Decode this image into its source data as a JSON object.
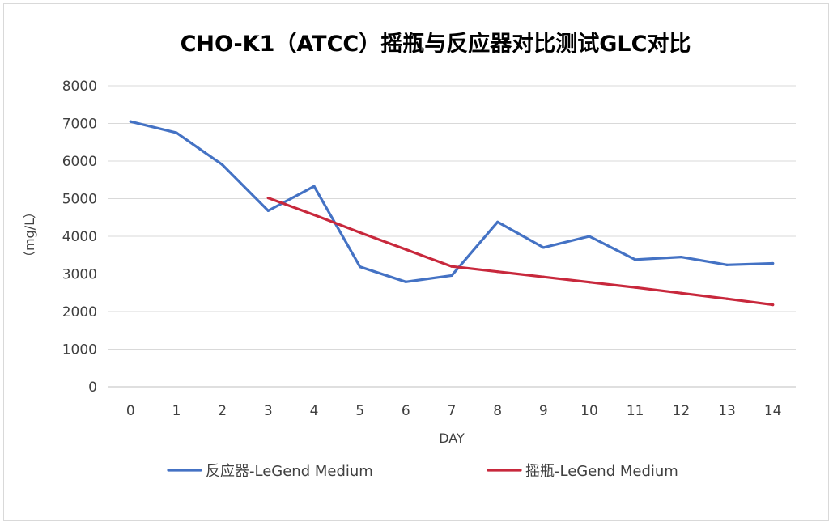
{
  "chart_data": {
    "type": "line",
    "title": "CHO-K1（ATCC）摇瓶与反应器对比测试GLC对比",
    "xlabel": "DAY",
    "ylabel": "（mg/L）",
    "categories": [
      "0",
      "1",
      "2",
      "3",
      "4",
      "5",
      "6",
      "7",
      "8",
      "9",
      "10",
      "11",
      "12",
      "13",
      "14"
    ],
    "ylim": [
      0,
      8000
    ],
    "yticks": [
      0,
      1000,
      2000,
      3000,
      4000,
      5000,
      6000,
      7000,
      8000
    ],
    "grid": true,
    "legend_position": "bottom",
    "series": [
      {
        "name": "反应器-LeGend Medium",
        "color": "#4472c4",
        "x": [
          0,
          1,
          2,
          3,
          4,
          5,
          6,
          7,
          8,
          9,
          10,
          11,
          12,
          13,
          14
        ],
        "values": [
          7050,
          6750,
          5900,
          4680,
          5330,
          3190,
          2790,
          2960,
          4380,
          3700,
          4000,
          3380,
          3450,
          3240,
          3280
        ]
      },
      {
        "name": "摇瓶-LeGend Medium",
        "color": "#c8283c",
        "x": [
          3,
          4,
          5,
          6,
          7,
          8,
          9,
          10,
          11,
          12,
          13,
          14
        ],
        "values": [
          5020,
          4570,
          4100,
          3650,
          3200,
          3060,
          2920,
          2780,
          2640,
          2490,
          2340,
          2180
        ]
      }
    ]
  }
}
